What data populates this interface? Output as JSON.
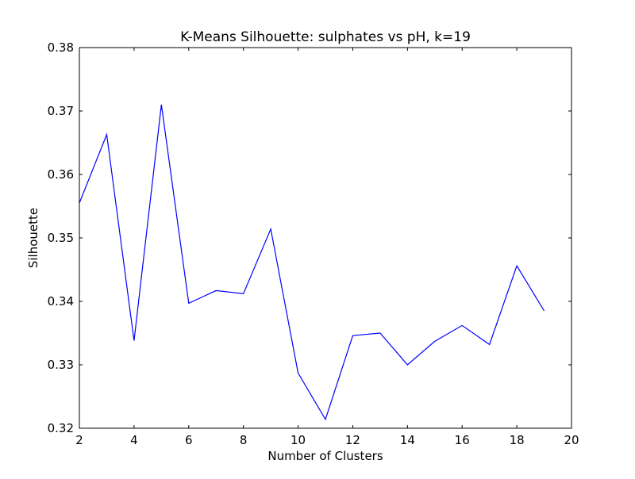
{
  "chart_data": {
    "type": "line",
    "title": "K-Means Silhouette: sulphates vs pH, k=19",
    "xlabel": "Number of Clusters",
    "ylabel": "Silhouette",
    "xlim": [
      2,
      20
    ],
    "ylim": [
      0.32,
      0.38
    ],
    "xticks": [
      2,
      4,
      6,
      8,
      10,
      12,
      14,
      16,
      18,
      20
    ],
    "xtick_labels": [
      "2",
      "4",
      "6",
      "8",
      "10",
      "12",
      "14",
      "16",
      "18",
      "20"
    ],
    "yticks": [
      0.32,
      0.33,
      0.34,
      0.35,
      0.36,
      0.37,
      0.38
    ],
    "ytick_labels": [
      "0.32",
      "0.33",
      "0.34",
      "0.35",
      "0.36",
      "0.37",
      "0.38"
    ],
    "grid": false,
    "series": [
      {
        "color": "#0000ff",
        "x": [
          2,
          3,
          4,
          5,
          6,
          7,
          8,
          9,
          10,
          11,
          12,
          13,
          14,
          15,
          16,
          17,
          18,
          19
        ],
        "y": [
          0.3555,
          0.3663,
          0.3338,
          0.371,
          0.3397,
          0.3417,
          0.3412,
          0.3514,
          0.3287,
          0.3214,
          0.3346,
          0.335,
          0.33,
          0.3337,
          0.3362,
          0.3332,
          0.3456,
          0.3385
        ]
      }
    ]
  }
}
